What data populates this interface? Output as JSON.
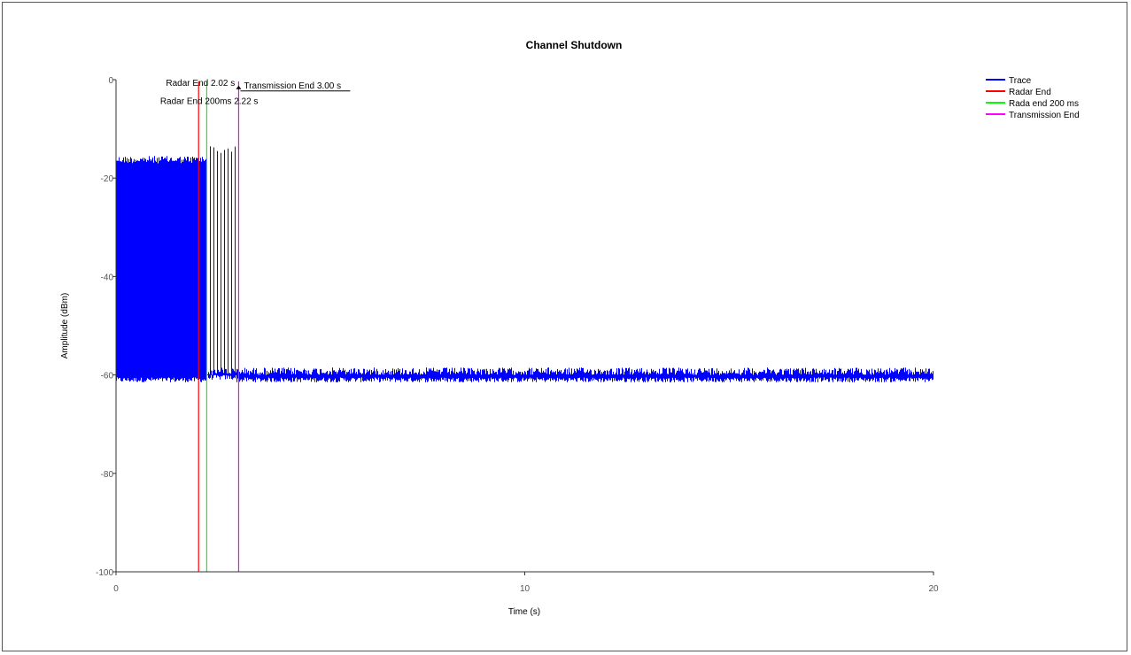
{
  "chart_data": {
    "type": "line",
    "title": "Channel Shutdown",
    "xlabel": "Time (s)",
    "ylabel": "Amplitude (dBm)",
    "xlim": [
      0,
      20
    ],
    "ylim": [
      -100,
      0
    ],
    "x_ticks": [
      0,
      10,
      20
    ],
    "y_ticks": [
      0,
      -20,
      -40,
      -60,
      -80,
      -100
    ],
    "grid": false,
    "legend_position": "top-right",
    "series": [
      {
        "name": "Trace",
        "color": "#0000ff",
        "segments": [
          {
            "x_start": 0.0,
            "x_end": 2.2,
            "y_low": -61.5,
            "y_high": -15.5
          },
          {
            "x_start": 2.2,
            "x_end": 2.95,
            "y_low": -61.0,
            "y_high": -13.5,
            "bursts": true
          },
          {
            "x_start": 2.95,
            "x_end": 20.0,
            "y_low": -61.5,
            "y_high": -58.5
          }
        ]
      },
      {
        "name": "Radar End",
        "color": "#ff0000",
        "x": 2.02
      },
      {
        "name": "Rada end 200 ms",
        "color": "#00ff00",
        "x": 2.22
      },
      {
        "name": "Transmission End",
        "color": "#ff00ff",
        "x": 3.0
      }
    ],
    "annotations": [
      {
        "text": "Radar End 2.02 s",
        "x": 2.02,
        "y": -0.5
      },
      {
        "text": "Transmission End 3.00 s",
        "x": 3.0,
        "y": -0.5
      },
      {
        "text": "Radar End 200ms 2.22 s",
        "x": 2.22,
        "y": -3.5
      }
    ]
  }
}
